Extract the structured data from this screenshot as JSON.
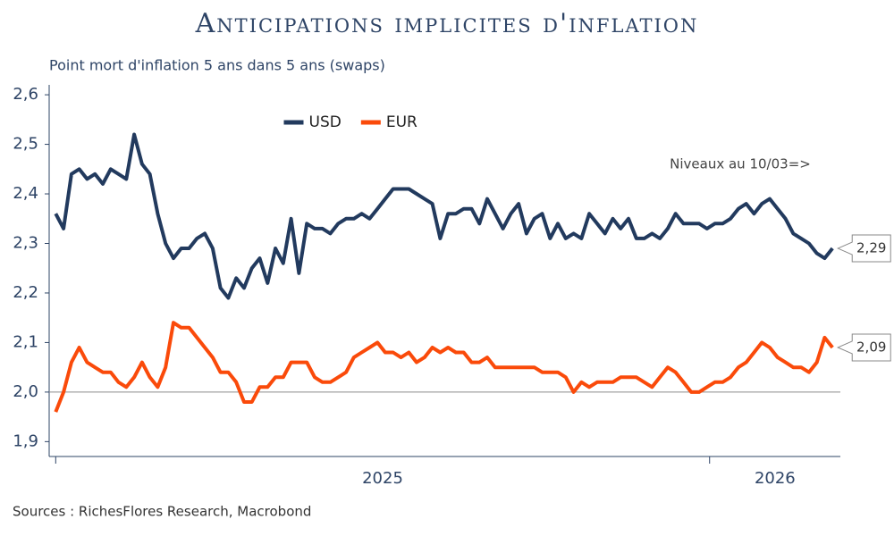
{
  "chart_data": {
    "type": "line",
    "title": "Anticipations implicites d'inflation",
    "subtitle": "Point mort d'inflation 5 ans dans 5 ans (swaps)",
    "annotation": "Niveaux au 10/03=>",
    "source": "Sources : RichesFlores Research, Macrobond",
    "legend": "top-center",
    "reference_line": 2,
    "xlim": [
      2024.99,
      2026.2
    ],
    "xticks": [
      2025,
      2026
    ],
    "ylim": [
      1.87,
      2.62
    ],
    "yticks": [
      {
        "value": 1.9,
        "label": "1,9"
      },
      {
        "value": 2,
        "label": "2,0"
      },
      {
        "value": 2.1,
        "label": "2,1"
      },
      {
        "value": 2.2,
        "label": "2,2"
      },
      {
        "value": 2.3,
        "label": "2,3"
      },
      {
        "value": 2.4,
        "label": "2,4"
      },
      {
        "value": 2.5,
        "label": "2,5"
      },
      {
        "value": 2.6,
        "label": "2,6"
      }
    ],
    "x": [
      2025,
      2025.012,
      2025.024,
      2025.036,
      2025.048,
      2025.06,
      2025.072,
      2025.084,
      2025.096,
      2025.108,
      2025.12,
      2025.132,
      2025.144,
      2025.156,
      2025.168,
      2025.18,
      2025.192,
      2025.204,
      2025.216,
      2025.228,
      2025.24,
      2025.252,
      2025.264,
      2025.276,
      2025.288,
      2025.3,
      2025.312,
      2025.324,
      2025.336,
      2025.348,
      2025.36,
      2025.372,
      2025.384,
      2025.396,
      2025.408,
      2025.42,
      2025.432,
      2025.444,
      2025.456,
      2025.468,
      2025.48,
      2025.492,
      2025.504,
      2025.516,
      2025.528,
      2025.54,
      2025.552,
      2025.564,
      2025.576,
      2025.588,
      2025.6,
      2025.612,
      2025.624,
      2025.636,
      2025.648,
      2025.66,
      2025.672,
      2025.684,
      2025.696,
      2025.708,
      2025.72,
      2025.732,
      2025.744,
      2025.756,
      2025.768,
      2025.78,
      2025.792,
      2025.804,
      2025.816,
      2025.828,
      2025.84,
      2025.852,
      2025.864,
      2025.876,
      2025.888,
      2025.9,
      2025.912,
      2025.924,
      2025.936,
      2025.948,
      2025.96,
      2025.972,
      2025.984,
      2025.996,
      2026.008,
      2026.02,
      2026.032,
      2026.044,
      2026.056,
      2026.068,
      2026.08,
      2026.092,
      2026.104,
      2026.116,
      2026.128,
      2026.14,
      2026.152,
      2026.164,
      2026.176,
      2026.188
    ],
    "series": [
      {
        "name": "USD",
        "color": "#223a5e",
        "last_value_label": "2,29",
        "values": [
          2.36,
          2.33,
          2.44,
          2.45,
          2.43,
          2.44,
          2.42,
          2.45,
          2.44,
          2.43,
          2.52,
          2.46,
          2.44,
          2.36,
          2.3,
          2.27,
          2.29,
          2.29,
          2.31,
          2.32,
          2.29,
          2.21,
          2.19,
          2.23,
          2.21,
          2.25,
          2.27,
          2.22,
          2.29,
          2.26,
          2.35,
          2.24,
          2.34,
          2.33,
          2.33,
          2.32,
          2.34,
          2.35,
          2.35,
          2.36,
          2.35,
          2.37,
          2.39,
          2.41,
          2.41,
          2.41,
          2.4,
          2.39,
          2.38,
          2.31,
          2.36,
          2.36,
          2.37,
          2.37,
          2.34,
          2.39,
          2.36,
          2.33,
          2.36,
          2.38,
          2.32,
          2.35,
          2.36,
          2.31,
          2.34,
          2.31,
          2.32,
          2.31,
          2.36,
          2.34,
          2.32,
          2.35,
          2.33,
          2.35,
          2.31,
          2.31,
          2.32,
          2.31,
          2.33,
          2.36,
          2.34,
          2.34,
          2.34,
          2.33,
          2.34,
          2.34,
          2.35,
          2.37,
          2.38,
          2.36,
          2.38,
          2.39,
          2.37,
          2.35,
          2.32,
          2.31,
          2.3,
          2.28,
          2.27,
          2.29
        ]
      },
      {
        "name": "EUR",
        "color": "#fa4a0a",
        "last_value_label": "2,09",
        "values": [
          1.96,
          2.0,
          2.06,
          2.09,
          2.06,
          2.05,
          2.04,
          2.04,
          2.02,
          2.01,
          2.03,
          2.06,
          2.03,
          2.01,
          2.05,
          2.14,
          2.13,
          2.13,
          2.11,
          2.09,
          2.07,
          2.04,
          2.04,
          2.02,
          1.98,
          1.98,
          2.01,
          2.01,
          2.03,
          2.03,
          2.06,
          2.06,
          2.06,
          2.03,
          2.02,
          2.02,
          2.03,
          2.04,
          2.07,
          2.08,
          2.09,
          2.1,
          2.08,
          2.08,
          2.07,
          2.08,
          2.06,
          2.07,
          2.09,
          2.08,
          2.09,
          2.08,
          2.08,
          2.06,
          2.06,
          2.07,
          2.05,
          2.05,
          2.05,
          2.05,
          2.05,
          2.05,
          2.04,
          2.04,
          2.04,
          2.03,
          2.0,
          2.02,
          2.01,
          2.02,
          2.02,
          2.02,
          2.03,
          2.03,
          2.03,
          2.02,
          2.01,
          2.03,
          2.05,
          2.04,
          2.02,
          2.0,
          2.0,
          2.01,
          2.02,
          2.02,
          2.03,
          2.05,
          2.06,
          2.08,
          2.1,
          2.09,
          2.07,
          2.06,
          2.05,
          2.05,
          2.04,
          2.06,
          2.11,
          2.09
        ]
      }
    ]
  }
}
